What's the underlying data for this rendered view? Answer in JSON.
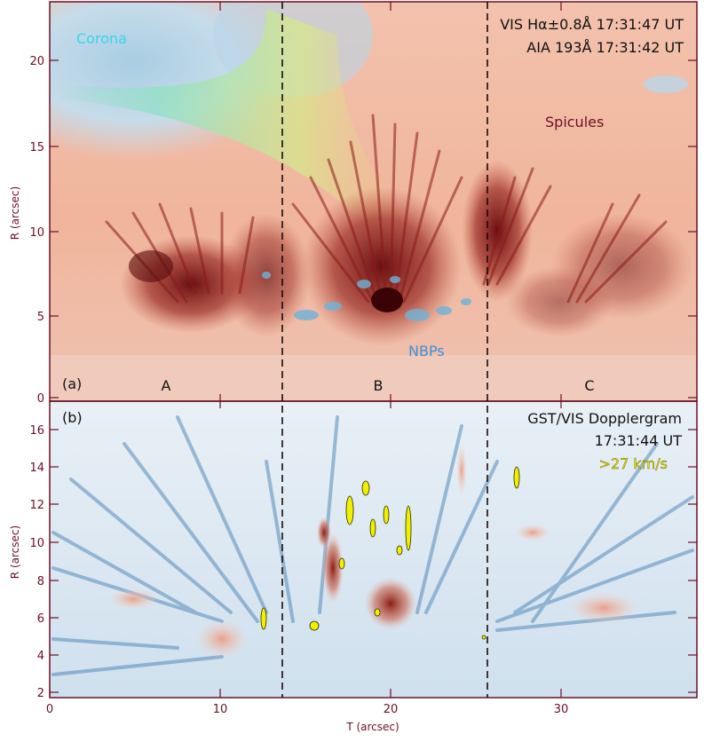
{
  "panel_a": {
    "label": "(a)",
    "instrument_line1": "VIS Hα±0.8Å 17:31:47 UT",
    "instrument_line2": "AIA 193Å 17:31:42 UT",
    "corona_label": "Corona",
    "spicules_label": "Spicules",
    "nbps_label": "NBPs",
    "region_labels": [
      "A",
      "B",
      "C"
    ],
    "y_axis_label": "R (arcsec)",
    "y_ticks": [
      "0",
      "5",
      "10",
      "15",
      "20"
    ],
    "y_range": [
      0,
      23
    ]
  },
  "panel_b": {
    "label": "(b)",
    "title_line1": "GST/VIS Dopplergram",
    "title_line2": "17:31:44 UT",
    "threshold_label": ">27 km/s",
    "y_axis_label": "R (arcsec)",
    "y_ticks": [
      "2",
      "4",
      "6",
      "8",
      "10",
      "12",
      "14",
      "16"
    ],
    "y_range": [
      2,
      17
    ]
  },
  "x_axis": {
    "label": "T (arcsec)",
    "ticks": [
      "0",
      "10",
      "20",
      "30"
    ],
    "range": [
      0,
      38
    ]
  },
  "dashed_lines_at_t": [
    13.6,
    25.6
  ],
  "colors": {
    "axis": "#6b0f24",
    "corona_label": "#38d6e6",
    "spicules_label": "#6b0f24",
    "nbps_label": "#3d8fd6",
    "threshold_label": "#e8e800",
    "contour_yellow": "#f0f000"
  }
}
